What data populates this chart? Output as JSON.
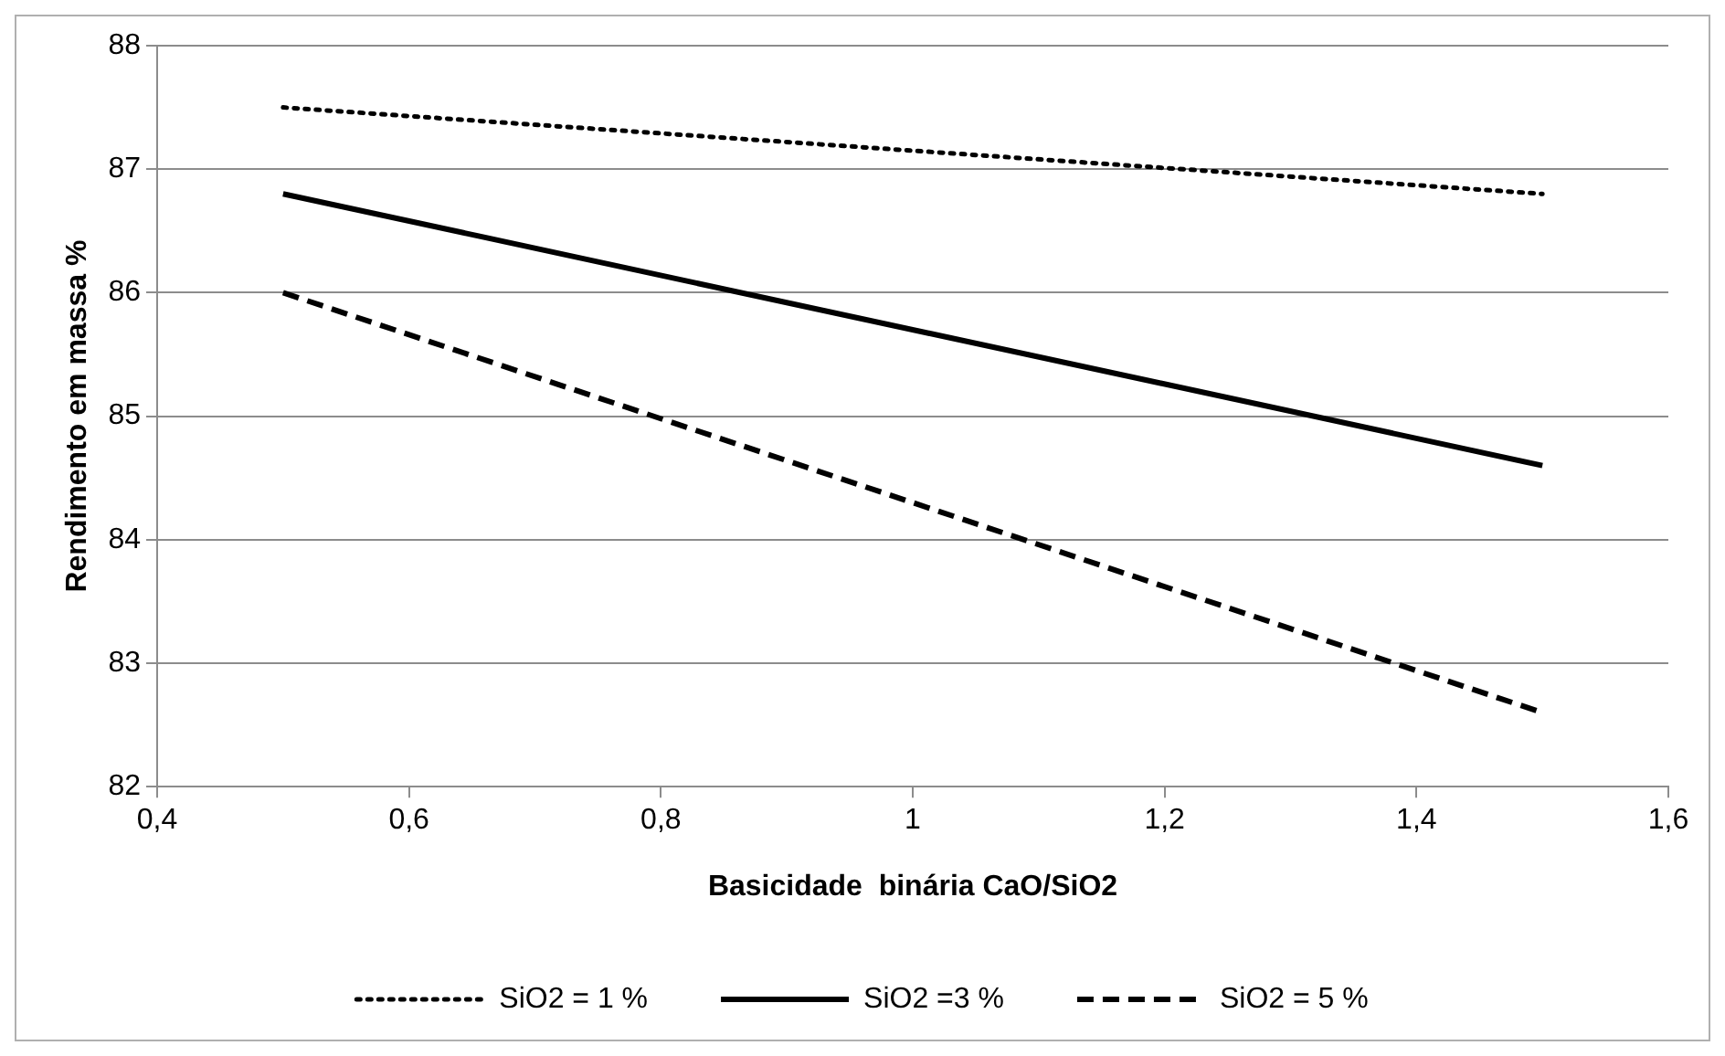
{
  "chart_data": {
    "type": "line",
    "xlabel": "Basicidade  binária CaO/SiO2",
    "ylabel": "Rendimento em massa %",
    "xlim": [
      0.4,
      1.6
    ],
    "xticks": [
      {
        "value": 0.4,
        "label": "0,4"
      },
      {
        "value": 0.6,
        "label": "0,6"
      },
      {
        "value": 0.8,
        "label": "0,8"
      },
      1,
      {
        "value": 1.2,
        "label": "1,2"
      },
      {
        "value": 1.4,
        "label": "1,4"
      },
      {
        "value": 1.6,
        "label": "1,6"
      }
    ],
    "ylim": [
      82,
      88
    ],
    "yticks": [
      82,
      83,
      84,
      85,
      86,
      87,
      88
    ],
    "grid": "y",
    "legend": "bottom",
    "marker": "none",
    "x": [
      0.5,
      1.5
    ],
    "series": [
      {
        "name": "SiO2 = 1 %",
        "color": "#000000",
        "line_style": "dotted",
        "values": [
          87.5,
          86.8
        ]
      },
      {
        "name": "SiO2 =3 %",
        "color": "#000000",
        "line_style": "solid",
        "values": [
          86.8,
          84.6
        ]
      },
      {
        "name": "SiO2 = 5 %",
        "color": "#000000",
        "line_style": "dashed",
        "values": [
          86.0,
          82.6
        ]
      }
    ]
  }
}
